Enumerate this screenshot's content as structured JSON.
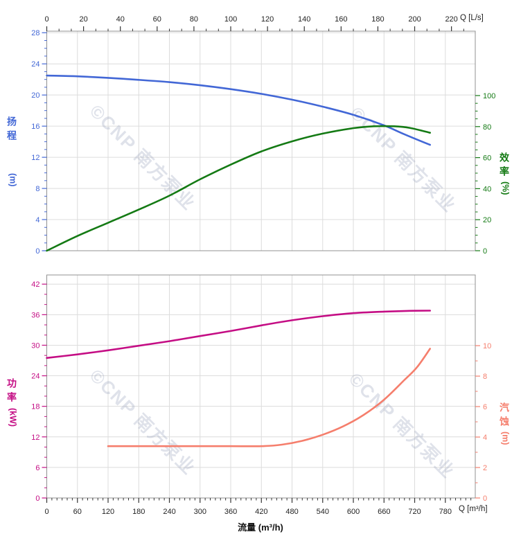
{
  "watermark": {
    "text": "©CNP 南方泵业",
    "color": "rgba(148,160,184,0.30)"
  },
  "colors": {
    "grid": "#dcdcdc",
    "frame": "#909090",
    "axis_text": "#222222",
    "head": "#4267d6",
    "efficiency": "#147a14",
    "power": "#c40d84",
    "npsh": "#f57e6c"
  },
  "xlabel": "流量 (m³/h)",
  "chart_data": [
    {
      "id": "head-efficiency",
      "type": "line",
      "x": {
        "label": "Q [L/s]",
        "position": "top",
        "unit": "L/s",
        "ticks": [
          0,
          20,
          40,
          60,
          80,
          100,
          120,
          140,
          160,
          180,
          200,
          220
        ],
        "minor_divisions": 3,
        "to_m3h": 3.6
      },
      "y_left": {
        "label": "扬程",
        "unit": "(m)",
        "color": "#4267d6",
        "ticks": [
          0,
          4,
          8,
          12,
          16,
          20,
          24,
          28
        ],
        "minor_divisions": 4,
        "range": [
          0,
          28.2
        ]
      },
      "y_right": {
        "label": "效率",
        "unit": "(%)",
        "color": "#147a14",
        "ticks": [
          0,
          20,
          40,
          60,
          80,
          100
        ],
        "minor_divisions": 4,
        "range": [
          0,
          141.5
        ]
      },
      "series": [
        {
          "name": "head",
          "axis": "left",
          "color": "#4267d6",
          "unit": "m",
          "points": [
            [
              0,
              22.5
            ],
            [
              60,
              22.4
            ],
            [
              120,
              22.2
            ],
            [
              180,
              21.95
            ],
            [
              240,
              21.65
            ],
            [
              300,
              21.25
            ],
            [
              360,
              20.75
            ],
            [
              420,
              20.15
            ],
            [
              480,
              19.4
            ],
            [
              540,
              18.5
            ],
            [
              600,
              17.45
            ],
            [
              660,
              16.1
            ],
            [
              700,
              14.95
            ],
            [
              750,
              13.6
            ]
          ]
        },
        {
          "name": "efficiency",
          "axis": "right",
          "color": "#147a14",
          "unit": "%",
          "points": [
            [
              0,
              0
            ],
            [
              60,
              9.5
            ],
            [
              120,
              18
            ],
            [
              180,
              26.5
            ],
            [
              240,
              35.5
            ],
            [
              300,
              46
            ],
            [
              360,
              55.5
            ],
            [
              420,
              64
            ],
            [
              480,
              70.5
            ],
            [
              540,
              75.5
            ],
            [
              600,
              79
            ],
            [
              640,
              80.2
            ],
            [
              680,
              80.2
            ],
            [
              710,
              79.2
            ],
            [
              750,
              76
            ]
          ]
        }
      ]
    },
    {
      "id": "power-npsh",
      "type": "line",
      "x": {
        "label": "Q [m³/h]",
        "position": "bottom",
        "unit": "m³/h",
        "ticks": [
          0,
          60,
          120,
          180,
          240,
          300,
          360,
          420,
          480,
          540,
          600,
          660,
          720,
          780
        ],
        "minor_divisions": 6,
        "to_m3h": 1
      },
      "y_left": {
        "label": "功率",
        "unit": "(kW)",
        "color": "#c40d84",
        "ticks": [
          0,
          6,
          12,
          18,
          24,
          30,
          36,
          42
        ],
        "minor_divisions": 3,
        "range": [
          0,
          43.8
        ]
      },
      "y_right": {
        "label": "汽蚀",
        "unit": "(m)",
        "color": "#f57e6c",
        "ticks": [
          0,
          2,
          4,
          6,
          8,
          10
        ],
        "minor_divisions": 2,
        "range": [
          0,
          14.64
        ]
      },
      "series": [
        {
          "name": "power",
          "axis": "left",
          "color": "#c40d84",
          "unit": "kW",
          "points": [
            [
              0,
              27.5
            ],
            [
              60,
              28.2
            ],
            [
              120,
              29.0
            ],
            [
              180,
              29.9
            ],
            [
              240,
              30.8
            ],
            [
              300,
              31.8
            ],
            [
              360,
              32.8
            ],
            [
              420,
              33.9
            ],
            [
              480,
              34.9
            ],
            [
              540,
              35.7
            ],
            [
              600,
              36.3
            ],
            [
              660,
              36.6
            ],
            [
              710,
              36.75
            ],
            [
              750,
              36.8
            ]
          ]
        },
        {
          "name": "npsh",
          "axis": "right",
          "color": "#f57e6c",
          "unit": "m",
          "points": [
            [
              120,
              3.4
            ],
            [
              180,
              3.4
            ],
            [
              240,
              3.4
            ],
            [
              300,
              3.4
            ],
            [
              360,
              3.4
            ],
            [
              420,
              3.4
            ],
            [
              460,
              3.5
            ],
            [
              500,
              3.75
            ],
            [
              540,
              4.15
            ],
            [
              580,
              4.7
            ],
            [
              620,
              5.45
            ],
            [
              660,
              6.45
            ],
            [
              700,
              7.75
            ],
            [
              725,
              8.6
            ],
            [
              750,
              9.8
            ]
          ]
        }
      ]
    }
  ]
}
